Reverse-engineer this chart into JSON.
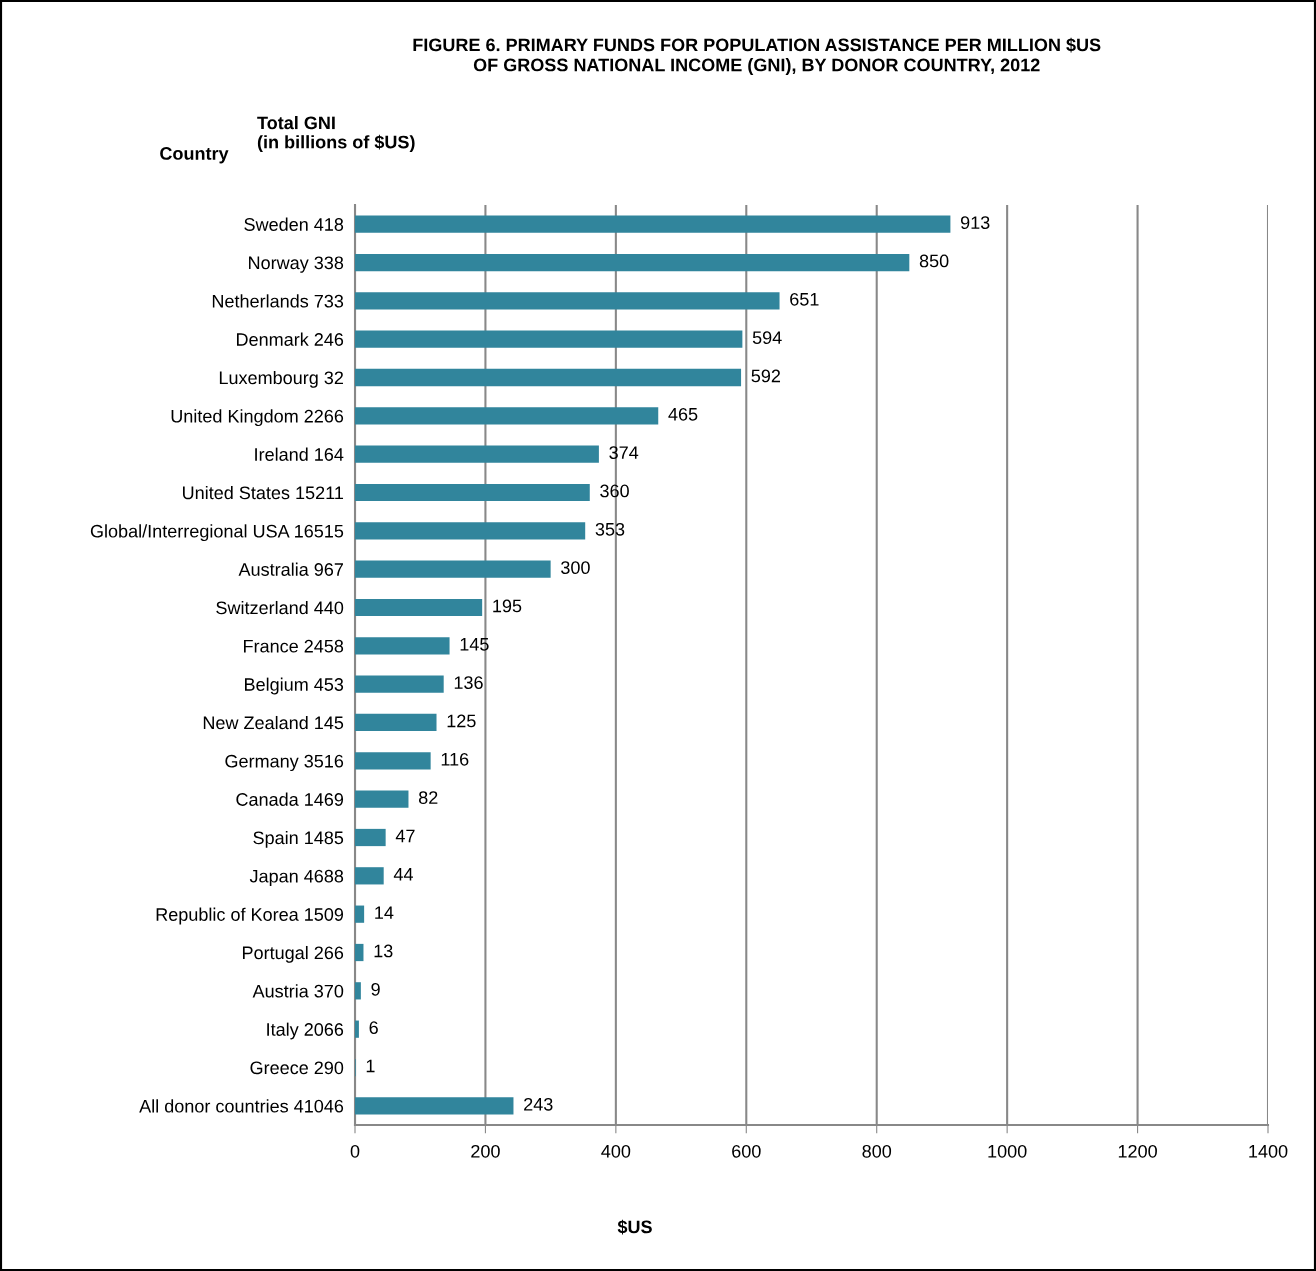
{
  "chart_data": {
    "type": "bar",
    "orientation": "horizontal",
    "title": "FIGURE 6. PRIMARY FUNDS FOR POPULATION ASSISTANCE PER MILLION $US\nOF GROSS NATIONAL INCOME (GNI), BY DONOR COUNTRY, 2012",
    "ylabel": "Country",
    "xlabel": "$US",
    "annotations": [
      "Total GNI\n(in billions of $US)"
    ],
    "categories": [
      "Sweden 418",
      "Norway 338",
      "Netherlands 733",
      "Denmark 246",
      "Luxembourg 32",
      "United Kingdom 2266",
      "Ireland 164",
      "United States 15211",
      "Global/Interregional USA 16515",
      "Australia 967",
      "Switzerland 440",
      "France 2458",
      "Belgium 453",
      "New Zealand 145",
      "Germany 3516",
      "Canada 1469",
      "Spain 1485",
      "Japan 4688",
      "Republic of Korea 1509",
      "Portugal 266",
      "Austria 370",
      "Italy 2066",
      "Greece 290",
      "All donor countries 41046"
    ],
    "values": [
      913,
      850,
      651,
      594,
      592,
      465,
      374,
      360,
      353,
      300,
      195,
      145,
      136,
      125,
      116,
      82,
      47,
      44,
      14,
      13,
      9,
      6,
      1,
      243
    ],
    "color": "#31859c",
    "xlim": [
      0,
      1400
    ],
    "xticks": [
      0,
      200,
      400,
      600,
      800,
      1000,
      1200,
      1400
    ],
    "grid": "x",
    "data_labels": true
  }
}
